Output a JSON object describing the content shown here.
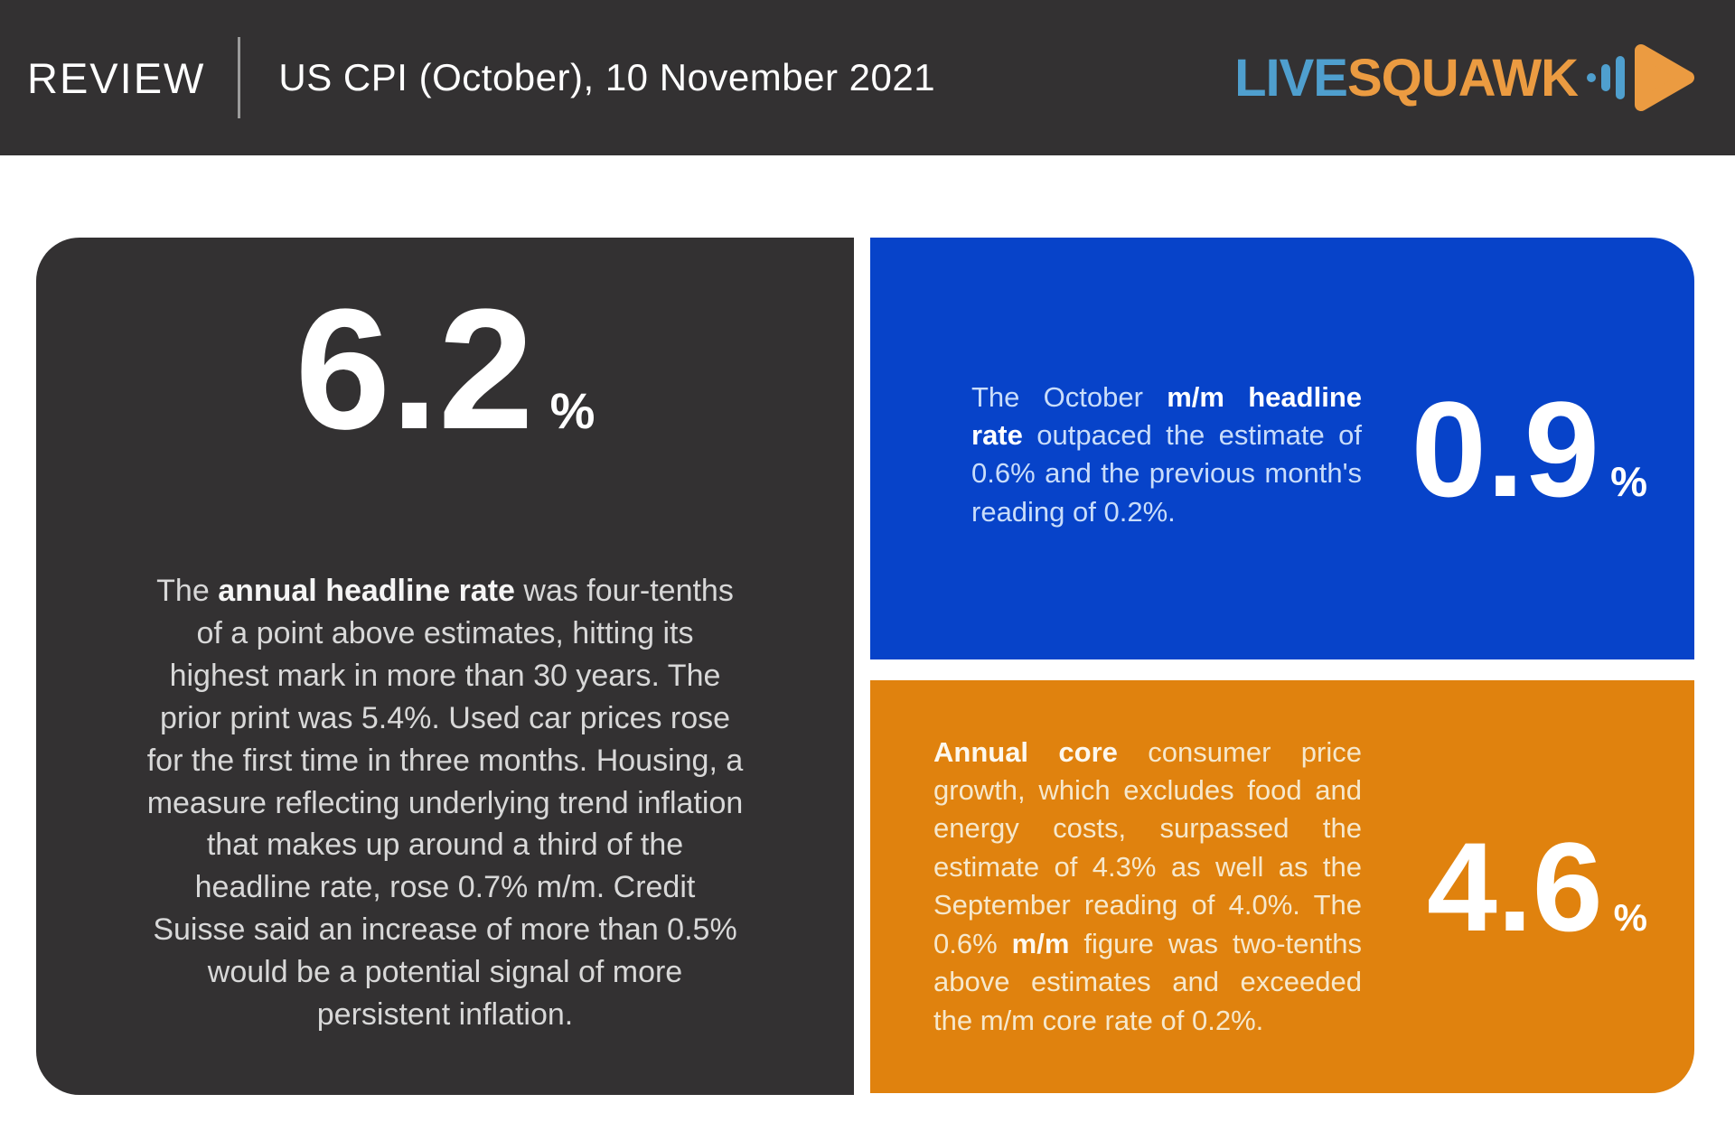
{
  "header": {
    "review_label": "REVIEW",
    "title": "US CPI (October), 10 November 2021",
    "logo": {
      "live": "LIVE",
      "squawk": "SQUAWK"
    }
  },
  "colors": {
    "header_bg": "#333132",
    "dark_card_bg": "#333132",
    "blue_card_bg": "#0743c9",
    "orange_card_bg": "#e0820e",
    "logo_blue": "#4f9fce",
    "logo_orange": "#eb9b41"
  },
  "headline_card": {
    "value": "6.2",
    "unit": "%",
    "paragraph": [
      {
        "text": "The ",
        "bold": false
      },
      {
        "text": "annual headline rate",
        "bold": true
      },
      {
        "text": " was four-tenths of a point above estimates, hitting its highest mark in more than 30 years. The prior print was 5.4%. Used car prices rose for the first time in three months. Housing, a measure reflecting underlying trend inflation that makes up around a third of the headline rate, rose 0.7% m/m. Credit Suisse said an increase of more than 0.5% would be a potential signal of more persistent inflation.",
        "bold": false
      }
    ]
  },
  "mm_headline_card": {
    "value": "0.9",
    "unit": "%",
    "paragraph": [
      {
        "text": "The October ",
        "bold": false
      },
      {
        "text": "m/m headline rate",
        "bold": true
      },
      {
        "text": " outpaced the estimate of 0.6% and the previous month's reading of 0.2%.",
        "bold": false
      }
    ]
  },
  "core_card": {
    "value": "4.6",
    "unit": "%",
    "paragraph": [
      {
        "text": "Annual core",
        "bold": true
      },
      {
        "text": " consumer price growth, which excludes food and energy costs, surpassed the estimate of 4.3% as well as the September reading of 4.0%. The 0.6% ",
        "bold": false
      },
      {
        "text": "m/m",
        "bold": true
      },
      {
        "text": " figure was two-tenths above estimates and exceeded the m/m core rate of 0.2%.",
        "bold": false
      }
    ]
  }
}
